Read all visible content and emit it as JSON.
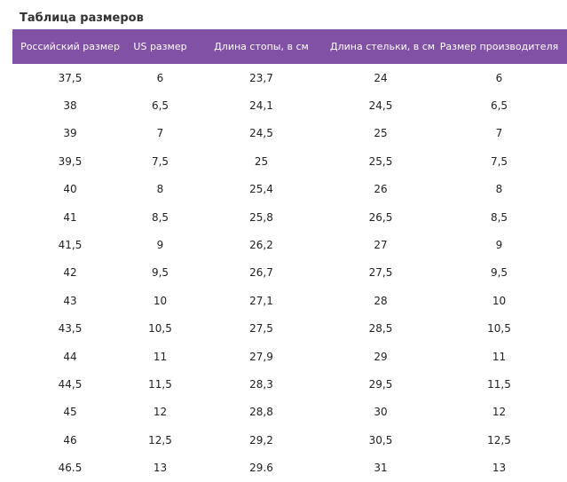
{
  "title": "Таблица размеров",
  "columns": [
    "Российский размер",
    "US размер",
    "Длина стопы, в см",
    "Длина стельки, в см",
    "Размер производителя"
  ],
  "rows": [
    [
      "37,5",
      "6",
      "23,7",
      "24",
      "6"
    ],
    [
      "38",
      "6,5",
      "24,1",
      "24,5",
      "6,5"
    ],
    [
      "39",
      "7",
      "24,5",
      "25",
      "7"
    ],
    [
      "39,5",
      "7,5",
      "25",
      "25,5",
      "7,5"
    ],
    [
      "40",
      "8",
      "25,4",
      "26",
      "8"
    ],
    [
      "41",
      "8,5",
      "25,8",
      "26,5",
      "8,5"
    ],
    [
      "41,5",
      "9",
      "26,2",
      "27",
      "9"
    ],
    [
      "42",
      "9,5",
      "26,7",
      "27,5",
      "9,5"
    ],
    [
      "43",
      "10",
      "27,1",
      "28",
      "10"
    ],
    [
      "43,5",
      "10,5",
      "27,5",
      "28,5",
      "10,5"
    ],
    [
      "44",
      "11",
      "27,9",
      "29",
      "11"
    ],
    [
      "44,5",
      "11,5",
      "28,3",
      "29,5",
      "11,5"
    ],
    [
      "45",
      "12",
      "28,8",
      "30",
      "12"
    ],
    [
      "46",
      "12,5",
      "29,2",
      "30,5",
      "12,5"
    ],
    [
      "46.5",
      "13",
      "29.6",
      "31",
      "13"
    ]
  ],
  "colors": {
    "header_bg": "#8151a6",
    "header_text": "#ffffff",
    "body_text": "#222222"
  }
}
